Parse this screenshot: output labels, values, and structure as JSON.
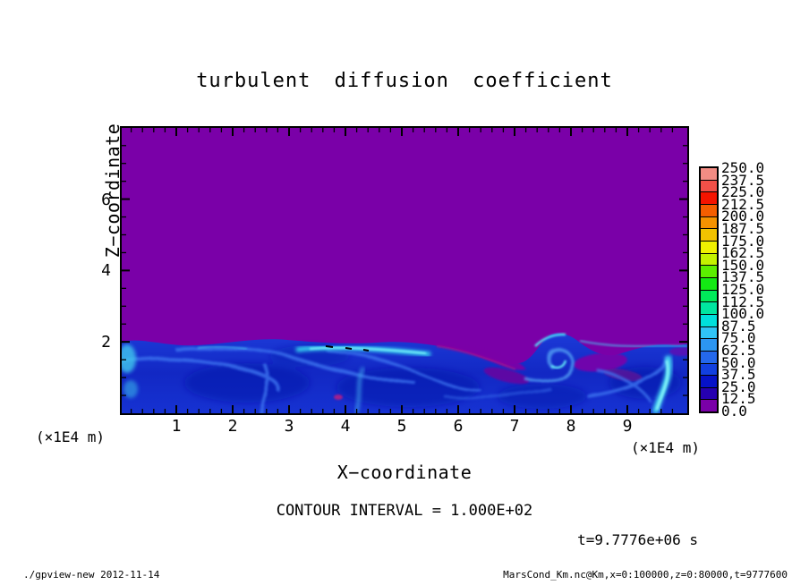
{
  "title": "turbulent diffusion coefficient",
  "axes": {
    "x": {
      "label": "X−coordinate",
      "unit": "(×1E4 m)",
      "ticks": [
        "1",
        "2",
        "3",
        "4",
        "5",
        "6",
        "7",
        "8",
        "9"
      ],
      "tick_values": [
        1,
        2,
        3,
        4,
        5,
        6,
        7,
        8,
        9
      ],
      "range": [
        0,
        10
      ]
    },
    "y": {
      "label": "Z−coordinate",
      "unit": "(×1E4 m)",
      "ticks": [
        "2",
        "4",
        "6"
      ],
      "tick_values": [
        2,
        4,
        6
      ],
      "range": [
        0,
        8
      ]
    }
  },
  "colorbar": {
    "labels_top_to_bottom": [
      "250.0",
      "237.5",
      "225.0",
      "212.5",
      "200.0",
      "187.5",
      "175.0",
      "162.5",
      "150.0",
      "137.5",
      "125.0",
      "112.5",
      "100.0",
      "87.5",
      "75.0",
      "62.5",
      "50.0",
      "37.5",
      "25.0",
      "12.5",
      "0.0"
    ],
    "colors_top_to_bottom": [
      "#F28C84",
      "#F25048",
      "#F51400",
      "#F55E00",
      "#F59200",
      "#F2C200",
      "#F0F000",
      "#C4F200",
      "#5CEE00",
      "#14E814",
      "#00EA5A",
      "#00E6A0",
      "#00E0DC",
      "#30C4F6",
      "#2C96F2",
      "#2468EC",
      "#1240E0",
      "#0612C8",
      "#2600B0",
      "#7A00A8"
    ]
  },
  "annotations": {
    "contour_interval": "CONTOUR INTERVAL = 1.000E+02",
    "time": "t=9.7776e+06 s"
  },
  "footer": {
    "left": "./gpview-new  2012-11-14",
    "right": "MarsCond_Km.nc@Km,x=0:100000,z=0:80000,t=9777600"
  },
  "field_colors": {
    "background_purple": "#7A00A8",
    "layer_blue": "#1530CC",
    "accent_cyan": "#38D8F2"
  },
  "chart_data": {
    "type": "heatmap",
    "title": "turbulent diffusion coefficient",
    "xlabel": "X-coordinate (×1E4 m)",
    "ylabel": "Z-coordinate (×1E4 m)",
    "x_range_m": [
      0,
      100000
    ],
    "z_range_m": [
      0,
      80000
    ],
    "x_ticks": [
      1,
      2,
      3,
      4,
      5,
      6,
      7,
      8,
      9
    ],
    "z_ticks": [
      2,
      4,
      6
    ],
    "contour_interval": 100.0,
    "time_s": 9777600,
    "time_label": "t=9.7776e+06 s",
    "colorbar_levels": [
      0,
      12.5,
      25,
      37.5,
      50,
      62.5,
      75,
      87.5,
      100,
      112.5,
      125,
      137.5,
      150,
      162.5,
      175,
      187.5,
      200,
      212.5,
      225,
      237.5,
      250
    ],
    "legend_position": "right",
    "grid": false,
    "field_summary": "Diffusion coefficient ~0-12.5 (purple) everywhere above z~2e4 m; turbulent mixed layer below z~2e4 m with eddy values mostly 12.5-75 (blue shades), cyan filament maxima ~87.5-125 along the layer top near x~3-5e4 m (with short black contour dashes at the 100 level) and bright cyan plumes near x~0.3e4, 2.7e4, 7.7e4, 9.5e4 m; low-value purple tongues entrained into the layer near x~5.5-6.3e4 and 6.8-7.2e4 m; small magenta spot near x~3.9e4 m, z~0.45e4 m"
  }
}
